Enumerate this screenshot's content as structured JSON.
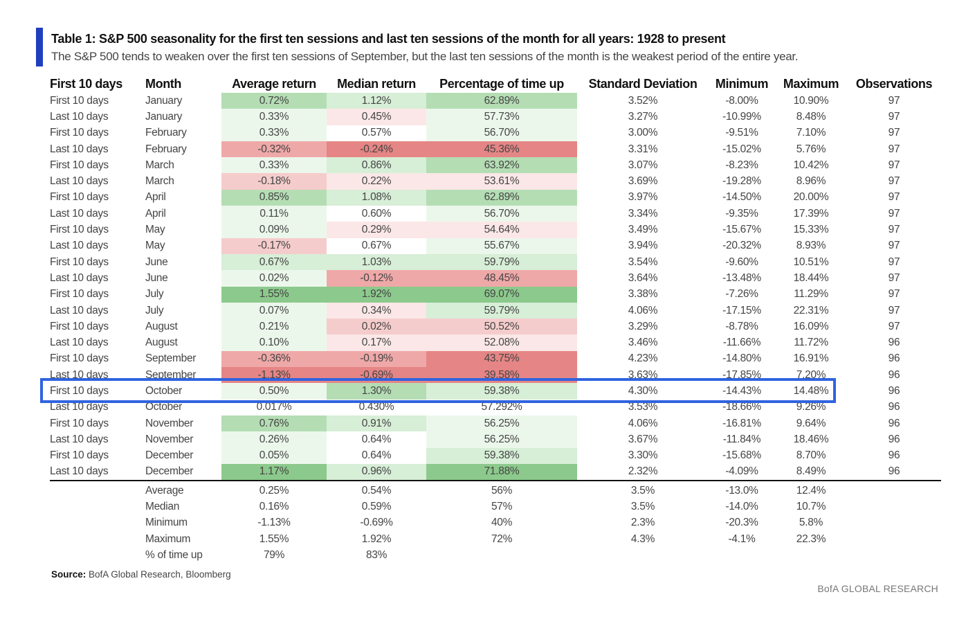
{
  "colors": {
    "title_bar": "#1f3fbf",
    "highlight": "#2f63e0",
    "green_strong": "#8cc98c",
    "green_mid": "#b4ddb4",
    "green_light": "#d7eed7",
    "green_faint": "#ecf7ec",
    "red_strong": "#e58585",
    "red_mid": "#efa8a8",
    "red_light": "#f5cccc",
    "red_faint": "#fbe7e7"
  },
  "title": "Table 1: S&P 500 seasonality for the first ten sessions and last ten sessions of the month for all years: 1928 to present",
  "subtitle": "The S&P 500 tends to weaken over the first ten sessions of September, but the last ten sessions of the month is the weakest period of the entire year.",
  "chart_data": {
    "type": "table",
    "columns": [
      "First 10 days",
      "Month",
      "Average return",
      "Median return",
      "Percentage of time up",
      "Standard Deviation",
      "Minimum",
      "Maximum",
      "Observations"
    ],
    "rows": [
      [
        "First 10 days",
        "January",
        "0.72%",
        "1.12%",
        "62.89%",
        "3.52%",
        "-8.00%",
        "10.90%",
        "97"
      ],
      [
        "Last 10 days",
        "January",
        "0.33%",
        "0.45%",
        "57.73%",
        "3.27%",
        "-10.99%",
        "8.48%",
        "97"
      ],
      [
        "First 10 days",
        "February",
        "0.33%",
        "0.57%",
        "56.70%",
        "3.00%",
        "-9.51%",
        "7.10%",
        "97"
      ],
      [
        "Last 10 days",
        "February",
        "-0.32%",
        "-0.24%",
        "45.36%",
        "3.31%",
        "-15.02%",
        "5.76%",
        "97"
      ],
      [
        "First 10 days",
        "March",
        "0.33%",
        "0.86%",
        "63.92%",
        "3.07%",
        "-8.23%",
        "10.42%",
        "97"
      ],
      [
        "Last 10 days",
        "March",
        "-0.18%",
        "0.22%",
        "53.61%",
        "3.69%",
        "-19.28%",
        "8.96%",
        "97"
      ],
      [
        "First 10 days",
        "April",
        "0.85%",
        "1.08%",
        "62.89%",
        "3.97%",
        "-14.50%",
        "20.00%",
        "97"
      ],
      [
        "Last 10 days",
        "April",
        "0.11%",
        "0.60%",
        "56.70%",
        "3.34%",
        "-9.35%",
        "17.39%",
        "97"
      ],
      [
        "First 10 days",
        "May",
        "0.09%",
        "0.29%",
        "54.64%",
        "3.49%",
        "-15.67%",
        "15.33%",
        "97"
      ],
      [
        "Last 10 days",
        "May",
        "-0.17%",
        "0.67%",
        "55.67%",
        "3.94%",
        "-20.32%",
        "8.93%",
        "97"
      ],
      [
        "First 10 days",
        "June",
        "0.67%",
        "1.03%",
        "59.79%",
        "3.54%",
        "-9.60%",
        "10.51%",
        "97"
      ],
      [
        "Last 10 days",
        "June",
        "0.02%",
        "-0.12%",
        "48.45%",
        "3.64%",
        "-13.48%",
        "18.44%",
        "97"
      ],
      [
        "First 10 days",
        "July",
        "1.55%",
        "1.92%",
        "69.07%",
        "3.38%",
        "-7.26%",
        "11.29%",
        "97"
      ],
      [
        "Last 10 days",
        "July",
        "0.07%",
        "0.34%",
        "59.79%",
        "4.06%",
        "-17.15%",
        "22.31%",
        "97"
      ],
      [
        "First 10 days",
        "August",
        "0.21%",
        "0.02%",
        "50.52%",
        "3.29%",
        "-8.78%",
        "16.09%",
        "97"
      ],
      [
        "Last 10 days",
        "August",
        "0.10%",
        "0.17%",
        "52.08%",
        "3.46%",
        "-11.66%",
        "11.72%",
        "96"
      ],
      [
        "First 10 days",
        "September",
        "-0.36%",
        "-0.19%",
        "43.75%",
        "4.23%",
        "-14.80%",
        "16.91%",
        "96"
      ],
      [
        "Last 10 days",
        "September",
        "-1.13%",
        "-0.69%",
        "39.58%",
        "3.63%",
        "-17.85%",
        "7.20%",
        "96"
      ],
      [
        "First 10 days",
        "October",
        "0.50%",
        "1.30%",
        "59.38%",
        "4.30%",
        "-14.43%",
        "14.48%",
        "96"
      ],
      [
        "Last 10 days",
        "October",
        "0.017%",
        "0.430%",
        "57.292%",
        "3.53%",
        "-18.66%",
        "9.26%",
        "96"
      ],
      [
        "First 10 days",
        "November",
        "0.76%",
        "0.91%",
        "56.25%",
        "4.06%",
        "-16.81%",
        "9.64%",
        "96"
      ],
      [
        "Last 10 days",
        "November",
        "0.26%",
        "0.64%",
        "56.25%",
        "3.67%",
        "-11.84%",
        "18.46%",
        "96"
      ],
      [
        "First 10 days",
        "December",
        "0.05%",
        "0.64%",
        "59.38%",
        "3.30%",
        "-15.68%",
        "8.70%",
        "96"
      ],
      [
        "Last 10 days",
        "December",
        "1.17%",
        "0.96%",
        "71.88%",
        "2.32%",
        "-4.09%",
        "8.49%",
        "96"
      ]
    ],
    "cell_shading": {
      "columns": [
        "Average return",
        "Median return",
        "Percentage of time up"
      ],
      "levels": [
        [
          "green_mid",
          "green_light",
          "green_mid"
        ],
        [
          "green_faint",
          "red_faint",
          "green_faint"
        ],
        [
          "green_faint",
          "",
          "green_faint"
        ],
        [
          "red_mid",
          "red_strong",
          "red_strong"
        ],
        [
          "green_faint",
          "green_light",
          "green_mid"
        ],
        [
          "red_light",
          "red_faint",
          "red_faint"
        ],
        [
          "green_mid",
          "green_light",
          "green_mid"
        ],
        [
          "green_faint",
          "",
          "green_faint"
        ],
        [
          "green_faint",
          "red_faint",
          "red_faint"
        ],
        [
          "red_light",
          "",
          "green_faint"
        ],
        [
          "green_light",
          "green_light",
          "green_light"
        ],
        [
          "green_faint",
          "red_mid",
          "red_mid"
        ],
        [
          "green_strong",
          "green_strong",
          "green_strong"
        ],
        [
          "green_faint",
          "red_faint",
          "green_light"
        ],
        [
          "green_faint",
          "red_light",
          "red_light"
        ],
        [
          "green_faint",
          "red_faint",
          "red_faint"
        ],
        [
          "red_mid",
          "red_mid",
          "red_strong"
        ],
        [
          "red_strong",
          "red_strong",
          "red_strong"
        ],
        [
          "green_faint",
          "green_mid",
          "green_light"
        ],
        [
          "",
          "",
          ""
        ],
        [
          "green_mid",
          "green_light",
          "green_faint"
        ],
        [
          "green_faint",
          "",
          "green_faint"
        ],
        [
          "green_faint",
          "",
          "green_light"
        ],
        [
          "green_strong",
          "green_light",
          "green_strong"
        ]
      ]
    },
    "highlighted_row": 18
  },
  "summary": [
    {
      "label": "Average",
      "values": [
        "0.25%",
        "0.54%",
        "56%",
        "3.5%",
        "-13.0%",
        "12.4%"
      ]
    },
    {
      "label": "Median",
      "values": [
        "0.16%",
        "0.59%",
        "57%",
        "3.5%",
        "-14.0%",
        "10.7%"
      ]
    },
    {
      "label": "Minimum",
      "values": [
        "-1.13%",
        "-0.69%",
        "40%",
        "2.3%",
        "-20.3%",
        "5.8%"
      ]
    },
    {
      "label": "Maximum",
      "values": [
        "1.55%",
        "1.92%",
        "72%",
        "4.3%",
        "-4.1%",
        "22.3%"
      ]
    },
    {
      "label": "% of time up",
      "values": [
        "79%",
        "83%",
        "",
        "",
        "",
        ""
      ]
    }
  ],
  "source": {
    "label": "Source:",
    "text": " BofA Global Research, Bloomberg"
  },
  "brand": "BofA GLOBAL RESEARCH"
}
